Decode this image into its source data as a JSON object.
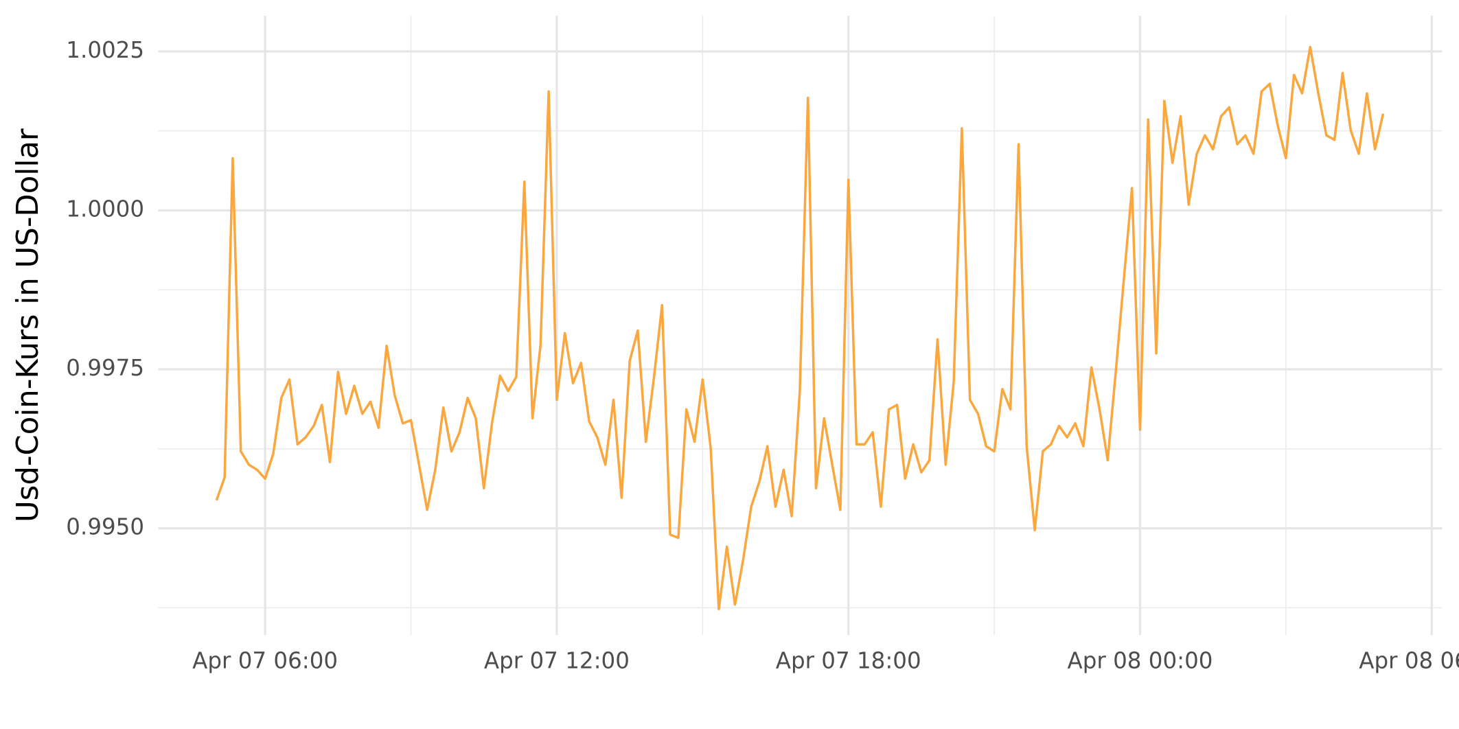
{
  "chart_data": {
    "type": "line",
    "y_label": "Usd-Coin-Kurs in US-Dollar",
    "color": "#f9a73e",
    "grid": true,
    "x": [
      "Apr 07 05:00",
      "Apr 07 05:10",
      "Apr 07 05:20",
      "Apr 07 05:30",
      "Apr 07 05:40",
      "Apr 07 05:50",
      "Apr 07 06:00",
      "Apr 07 06:10",
      "Apr 07 06:20",
      "Apr 07 06:30",
      "Apr 07 06:40",
      "Apr 07 06:50",
      "Apr 07 07:00",
      "Apr 07 07:10",
      "Apr 07 07:20",
      "Apr 07 07:30",
      "Apr 07 07:40",
      "Apr 07 07:50",
      "Apr 07 08:00",
      "Apr 07 08:10",
      "Apr 07 08:20",
      "Apr 07 08:30",
      "Apr 07 08:40",
      "Apr 07 08:50",
      "Apr 07 09:00",
      "Apr 07 09:10",
      "Apr 07 09:20",
      "Apr 07 09:30",
      "Apr 07 09:40",
      "Apr 07 09:50",
      "Apr 07 10:00",
      "Apr 07 10:10",
      "Apr 07 10:20",
      "Apr 07 10:30",
      "Apr 07 10:40",
      "Apr 07 10:50",
      "Apr 07 11:00",
      "Apr 07 11:10",
      "Apr 07 11:20",
      "Apr 07 11:30",
      "Apr 07 11:40",
      "Apr 07 11:50",
      "Apr 07 12:00",
      "Apr 07 12:10",
      "Apr 07 12:20",
      "Apr 07 12:30",
      "Apr 07 12:40",
      "Apr 07 12:50",
      "Apr 07 13:00",
      "Apr 07 13:10",
      "Apr 07 13:20",
      "Apr 07 13:30",
      "Apr 07 13:40",
      "Apr 07 13:50",
      "Apr 07 14:00",
      "Apr 07 14:10",
      "Apr 07 14:20",
      "Apr 07 14:30",
      "Apr 07 14:40",
      "Apr 07 14:50",
      "Apr 07 15:00",
      "Apr 07 15:10",
      "Apr 07 15:20",
      "Apr 07 15:30",
      "Apr 07 15:40",
      "Apr 07 15:50",
      "Apr 07 16:00",
      "Apr 07 16:10",
      "Apr 07 16:20",
      "Apr 07 16:30",
      "Apr 07 16:40",
      "Apr 07 16:50",
      "Apr 07 17:00",
      "Apr 07 17:10",
      "Apr 07 17:20",
      "Apr 07 17:30",
      "Apr 07 17:40",
      "Apr 07 17:50",
      "Apr 07 18:00",
      "Apr 07 18:10",
      "Apr 07 18:20",
      "Apr 07 18:30",
      "Apr 07 18:40",
      "Apr 07 18:50",
      "Apr 07 19:00",
      "Apr 07 19:10",
      "Apr 07 19:20",
      "Apr 07 19:30",
      "Apr 07 19:40",
      "Apr 07 19:50",
      "Apr 07 20:00",
      "Apr 07 20:10",
      "Apr 07 20:20",
      "Apr 07 20:30",
      "Apr 07 20:40",
      "Apr 07 20:50",
      "Apr 07 21:00",
      "Apr 07 21:10",
      "Apr 07 21:20",
      "Apr 07 21:30",
      "Apr 07 21:40",
      "Apr 07 21:50",
      "Apr 07 22:00",
      "Apr 07 22:10",
      "Apr 07 22:20",
      "Apr 07 22:30",
      "Apr 07 22:40",
      "Apr 07 22:50",
      "Apr 07 23:00",
      "Apr 07 23:10",
      "Apr 07 23:20",
      "Apr 07 23:30",
      "Apr 07 23:40",
      "Apr 07 23:50",
      "Apr 08 00:00",
      "Apr 08 00:10",
      "Apr 08 00:20",
      "Apr 08 00:30",
      "Apr 08 00:40",
      "Apr 08 00:50",
      "Apr 08 01:00",
      "Apr 08 01:10",
      "Apr 08 01:20",
      "Apr 08 01:30",
      "Apr 08 01:40",
      "Apr 08 01:50",
      "Apr 08 02:00",
      "Apr 08 02:10",
      "Apr 08 02:20",
      "Apr 08 02:30",
      "Apr 08 02:40",
      "Apr 08 02:50",
      "Apr 08 03:00",
      "Apr 08 03:10",
      "Apr 08 03:20",
      "Apr 08 03:30",
      "Apr 08 03:40",
      "Apr 08 03:50",
      "Apr 08 04:00",
      "Apr 08 04:10",
      "Apr 08 04:20",
      "Apr 08 04:30",
      "Apr 08 04:40",
      "Apr 08 04:50",
      "Apr 08 05:00"
    ],
    "values": [
      0.99544,
      0.9958,
      1.00082,
      0.99621,
      0.996,
      0.99592,
      0.99578,
      0.99617,
      0.99705,
      0.99734,
      0.99632,
      0.99643,
      0.99661,
      0.99694,
      0.99604,
      0.99746,
      0.9968,
      0.99724,
      0.9968,
      0.99699,
      0.99658,
      0.99787,
      0.99709,
      0.99665,
      0.9967,
      0.996,
      0.99529,
      0.99592,
      0.9969,
      0.99621,
      0.99651,
      0.99705,
      0.99673,
      0.99563,
      0.99665,
      0.9974,
      0.99716,
      0.99738,
      1.00045,
      0.99673,
      0.99789,
      1.00187,
      0.99702,
      0.99807,
      0.99728,
      0.9976,
      0.99668,
      0.99643,
      0.996,
      0.99702,
      0.99548,
      0.99763,
      0.99811,
      0.99636,
      0.99738,
      0.99851,
      0.9949,
      0.99485,
      0.99687,
      0.99636,
      0.99734,
      0.99626,
      0.99373,
      0.99471,
      0.9938,
      0.9945,
      0.99534,
      0.99573,
      0.99629,
      0.99534,
      0.99592,
      0.99519,
      0.99716,
      1.00177,
      0.99563,
      0.99673,
      0.996,
      0.99529,
      1.00048,
      0.99632,
      0.99632,
      0.99651,
      0.99534,
      0.99687,
      0.99694,
      0.99578,
      0.99632,
      0.99588,
      0.99607,
      0.99797,
      0.996,
      0.99731,
      1.00129,
      0.99702,
      0.9968,
      0.99629,
      0.99621,
      0.99719,
      0.99687,
      1.00104,
      0.99629,
      0.99497,
      0.99621,
      0.99632,
      0.99661,
      0.99643,
      0.99665,
      0.99629,
      0.99753,
      0.99687,
      0.99607,
      0.99746,
      0.99892,
      1.00035,
      0.99655,
      1.00143,
      0.99775,
      1.00172,
      1.00075,
      1.00148,
      1.00009,
      1.00089,
      1.00118,
      1.00096,
      1.00148,
      1.00162,
      1.00104,
      1.00118,
      1.00089,
      1.00187,
      1.00199,
      1.00133,
      1.00082,
      1.00213,
      1.00184,
      1.00257,
      1.00184,
      1.00118,
      1.00111,
      1.00216,
      1.00126,
      1.00089,
      1.00184,
      1.00096,
      1.00152
    ],
    "xlim": [
      "Apr 07 03:48",
      "Apr 08 06:13"
    ],
    "xticks": [
      "Apr 07 06:00",
      "Apr 07 12:00",
      "Apr 07 18:00",
      "Apr 08 00:00",
      "Apr 08 06:00"
    ],
    "ylim": [
      0.99332,
      1.00306
    ],
    "yticks": [
      {
        "value": 0.995,
        "label": "0.9950"
      },
      0.9975,
      {
        "value": 1,
        "label": "1.0000"
      },
      1.0025
    ]
  }
}
